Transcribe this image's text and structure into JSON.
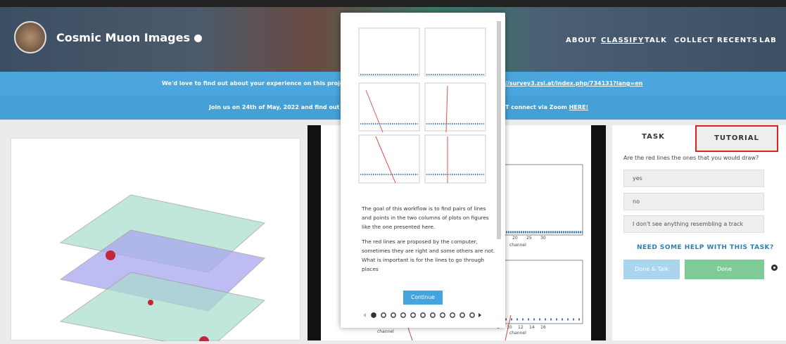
{
  "header": {
    "title": "Cosmic Muon Images",
    "nav": [
      "ABOUT",
      "CLASSIFY",
      "TALK",
      "COLLECT",
      "RECENTS",
      "LAB"
    ]
  },
  "banners": [
    {
      "left": "We'd love to find out about your experience on this project! F",
      "right": "//survey3.zsi.at/index.php/734131?lang=en"
    },
    {
      "left": "Join us on 24th of May, 2022 and find out the w",
      "right": "T connect via Zoom ",
      "link": "HERE!"
    }
  ],
  "subject": {
    "axis_labels": [
      "channel",
      "channel",
      "channel"
    ],
    "ticks_a": [
      "15",
      "20",
      "25",
      "30"
    ],
    "ticks_b": [
      "8",
      "10",
      "12",
      "14",
      "16"
    ]
  },
  "modal": {
    "paragraphs": [
      "The goal of this workflow is to find pairs of lines and points in the two columns of plots on figures like the one presented here.",
      "The red lines are proposed by the computer, sometimes they are right and some others are not. What is important is for the lines to go through places"
    ],
    "button": "Continue"
  },
  "task": {
    "tabs": [
      "TASK",
      "TUTORIAL"
    ],
    "question": "Are the red lines the ones that you would draw?",
    "answers": [
      "yes",
      "no",
      "I don't see anything resembling a track"
    ],
    "help": "NEED SOME HELP WITH THIS TASK?",
    "buttons": [
      "Done & Talk",
      "Done"
    ]
  }
}
